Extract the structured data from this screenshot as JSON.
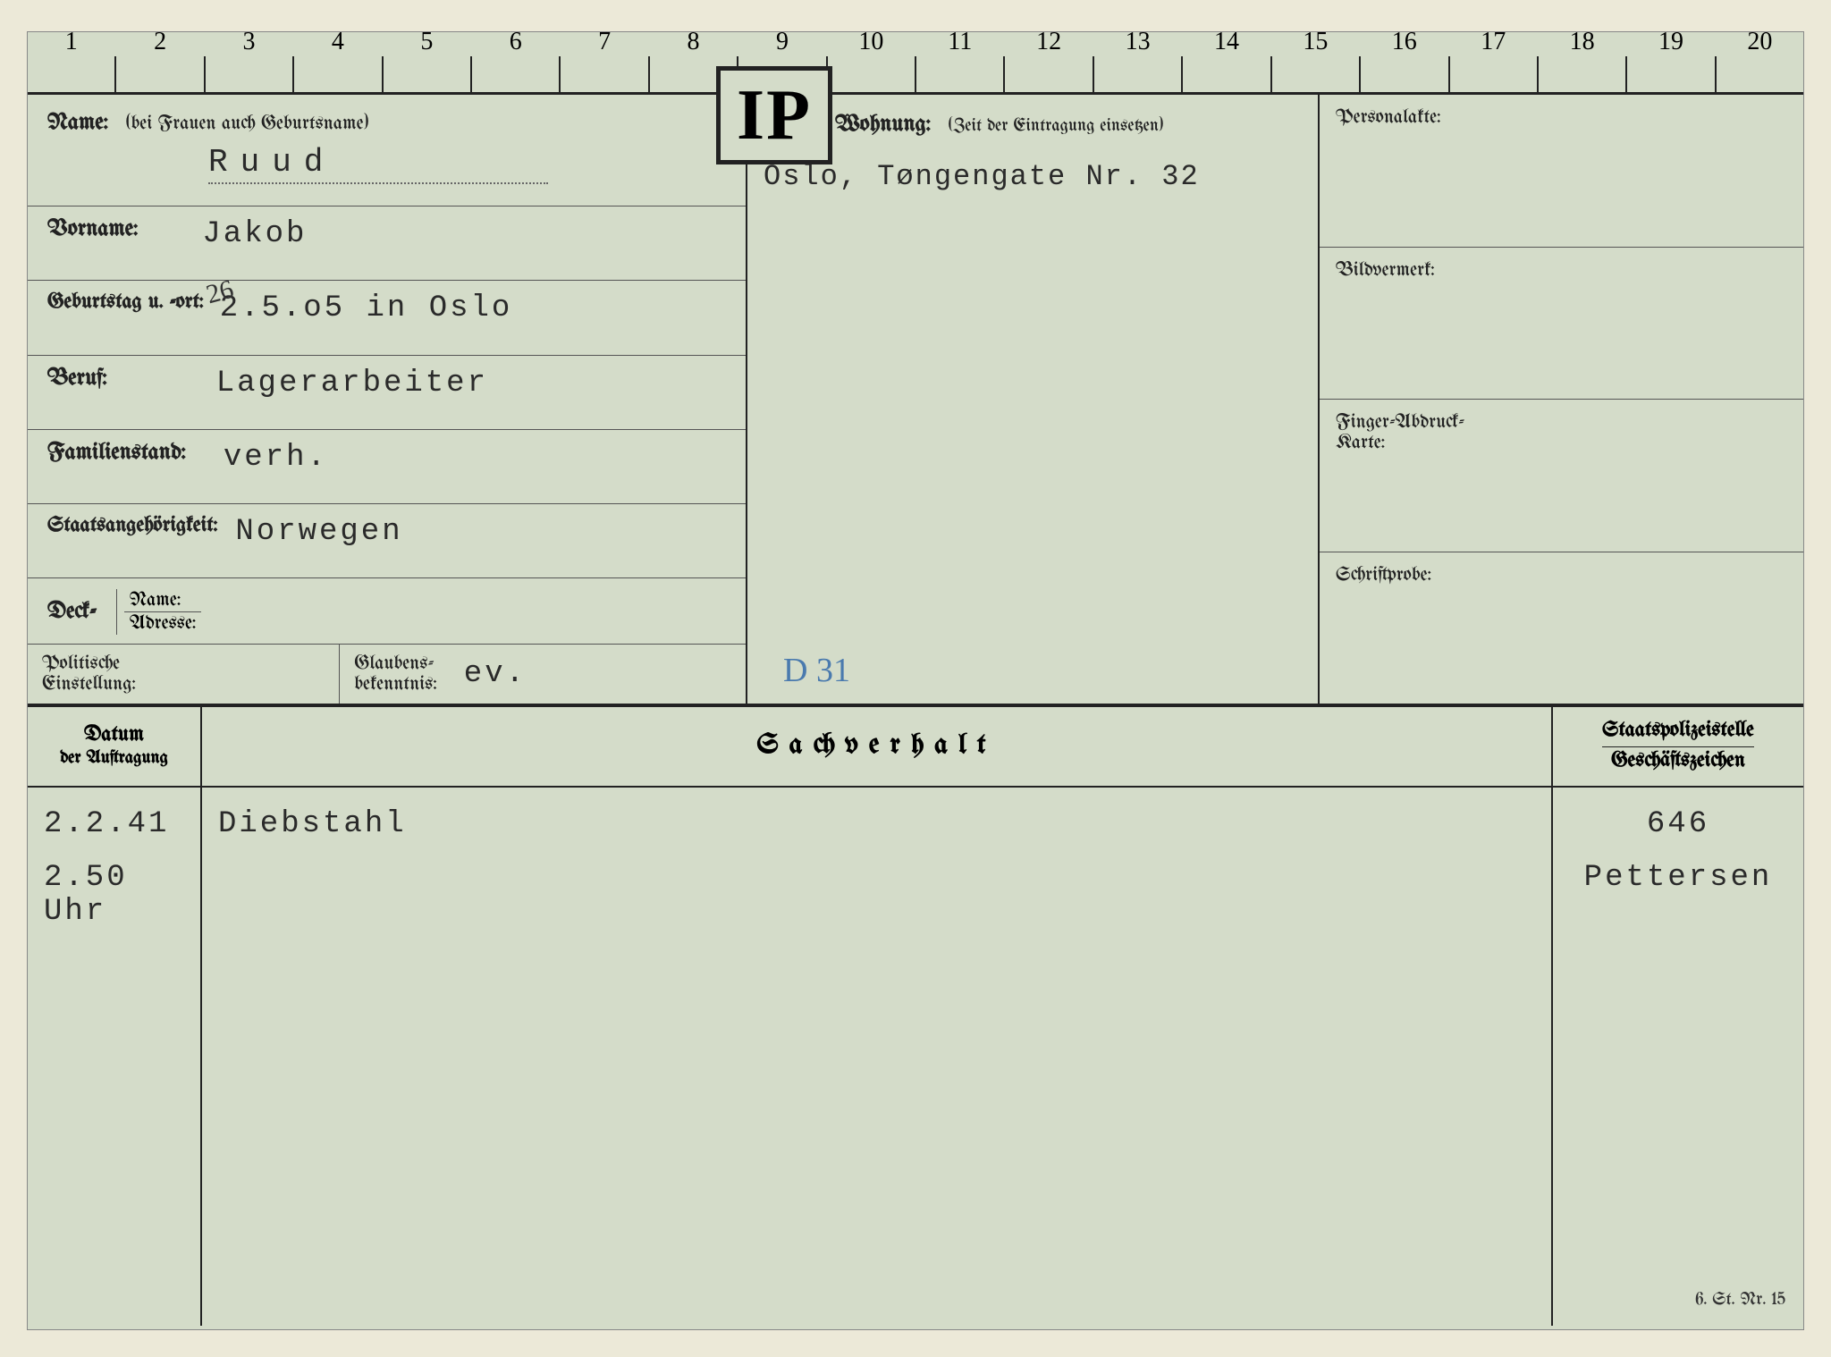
{
  "ruler": {
    "ticks": [
      "1",
      "2",
      "3",
      "4",
      "5",
      "6",
      "7",
      "8",
      "9",
      "10",
      "11",
      "12",
      "13",
      "14",
      "15",
      "16",
      "17",
      "18",
      "19",
      "20"
    ]
  },
  "ip_badge": "IP",
  "labels": {
    "name": "Name:",
    "name_note": "(bei Frauen auch Geburtsname)",
    "vorname": "Vorname:",
    "geburtstag": "Geburtstag u. -ort:",
    "beruf": "Beruf:",
    "familienstand": "Familienstand:",
    "staatsang": "Staatsangehörigkeit:",
    "deck": "Deck-",
    "deck_name": "Name:",
    "deck_adresse": "Adresse:",
    "politische": "Politische",
    "einstellung": "Einstellung:",
    "glaubens": "Glaubens-",
    "bekenntnis": "bekenntnis:",
    "wohnung": "Wohnung:",
    "wohnung_note": "(Zeit der Eintragung einsetzen)",
    "personalakte": "Personalakte:",
    "bildvermerk": "Bildvermerk:",
    "fingerabdruck1": "Finger-Abdruck-",
    "fingerabdruck2": "Karte:",
    "schriftprobe": "Schriftprobe:",
    "datum1": "Datum",
    "datum2": "der Auftragung",
    "sachverhalt": "Sachverhalt",
    "staatspolizei": "Staatspolizeistelle",
    "geschaeftszeichen": "Geschäftszeichen",
    "footer": "6. St. Nr. 15"
  },
  "values": {
    "name": "Ruud",
    "vorname": "Jakob",
    "geburtstag": "2.5.o5 in Oslo",
    "geburtstag_correction": "26",
    "beruf": "Lagerarbeiter",
    "familienstand": "verh.",
    "staatsang": "Norwegen",
    "glaubens": "ev.",
    "wohnung": "Oslo, Tøngengate Nr. 32",
    "handwritten_note": "D 31"
  },
  "entries": [
    {
      "date_line1": "2.2.41",
      "date_line2": "2.50 Uhr",
      "sachverhalt": "Diebstahl",
      "ref_line1": "646",
      "ref_line2": "Pettersen"
    }
  ],
  "colors": {
    "card_bg": "#d4dcc9",
    "page_bg": "#ece9d8",
    "line": "#222222",
    "typed": "#2a2a2a",
    "handwritten": "#4a7aae"
  }
}
